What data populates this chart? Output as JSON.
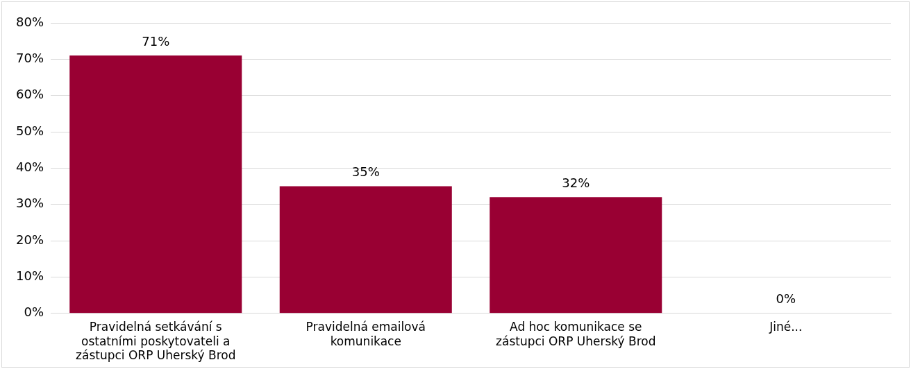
{
  "chart_data": {
    "type": "bar",
    "categories": [
      "Pravidelná setkávání s ostatními poskytovateli a zástupci ORP Uherský Brod",
      "Pravidelná emailová komunikace",
      "Ad hoc komunikace se zástupci ORP Uherský Brod",
      "Jiné..."
    ],
    "values": [
      71,
      35,
      32,
      0
    ],
    "color": "#990033",
    "ylim": [
      0,
      80
    ],
    "yticks": [
      {
        "value": 0,
        "label": "0%"
      },
      {
        "value": 10,
        "label": "10%"
      },
      {
        "value": 20,
        "label": "20%"
      },
      {
        "value": 30,
        "label": "30%"
      },
      {
        "value": 40,
        "label": "40%"
      },
      {
        "value": 50,
        "label": "50%"
      },
      {
        "value": 60,
        "label": "60%"
      },
      {
        "value": 70,
        "label": "70%"
      },
      {
        "value": 80,
        "label": "80%"
      }
    ],
    "value_labels": [
      "71%",
      "35%",
      "32%",
      "0%"
    ],
    "grid": "y"
  }
}
